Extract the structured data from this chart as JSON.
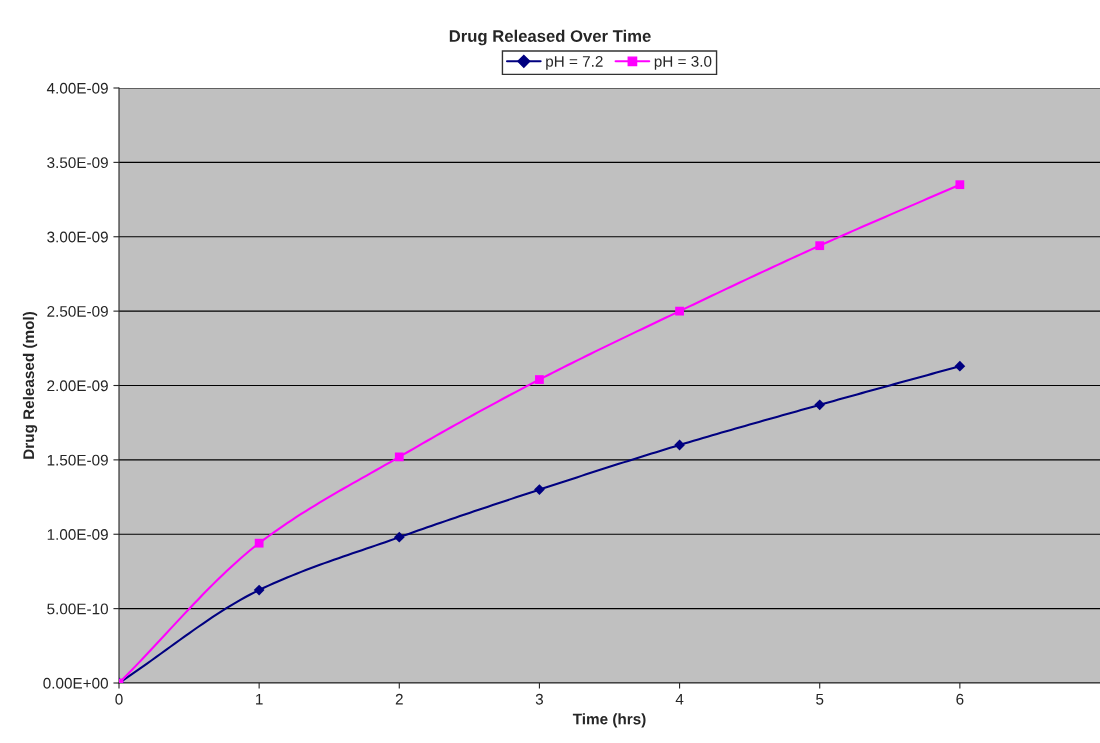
{
  "chart_data": {
    "type": "line",
    "title": "Drug Released Over Time",
    "xlabel": "Time (hrs)",
    "ylabel": "Drug Released (mol)",
    "x": [
      0,
      1,
      2,
      3,
      4,
      5,
      6
    ],
    "series": [
      {
        "name": "pH = 7.2",
        "color": "#000080",
        "marker": "diamond",
        "values": [
          0,
          6.25e-10,
          9.8e-10,
          1.3e-09,
          1.6e-09,
          1.87e-09,
          2.13e-09
        ]
      },
      {
        "name": "pH = 3.0",
        "color": "#ff00ff",
        "marker": "square",
        "values": [
          0,
          9.4e-10,
          1.52e-09,
          2.04e-09,
          2.5e-09,
          2.94e-09,
          3.35e-09
        ]
      }
    ],
    "xlim": [
      0,
      7
    ],
    "xticks": [
      0,
      1,
      2,
      3,
      4,
      5,
      6
    ],
    "ylim": [
      0,
      4e-09
    ],
    "yticks": [
      {
        "value": 0,
        "label": "0.00E+00"
      },
      {
        "value": 5e-10,
        "label": "5.00E-10"
      },
      {
        "value": 1e-09,
        "label": "1.00E-09"
      },
      {
        "value": 1.5e-09,
        "label": "1.50E-09"
      },
      {
        "value": 2e-09,
        "label": "2.00E-09"
      },
      {
        "value": 2.5e-09,
        "label": "2.50E-09"
      },
      {
        "value": 3e-09,
        "label": "3.00E-09"
      },
      {
        "value": 3.5e-09,
        "label": "3.50E-09"
      },
      {
        "value": 4e-09,
        "label": "4.00E-09"
      }
    ],
    "grid": "y",
    "legend": "top",
    "line_style": "solid"
  }
}
